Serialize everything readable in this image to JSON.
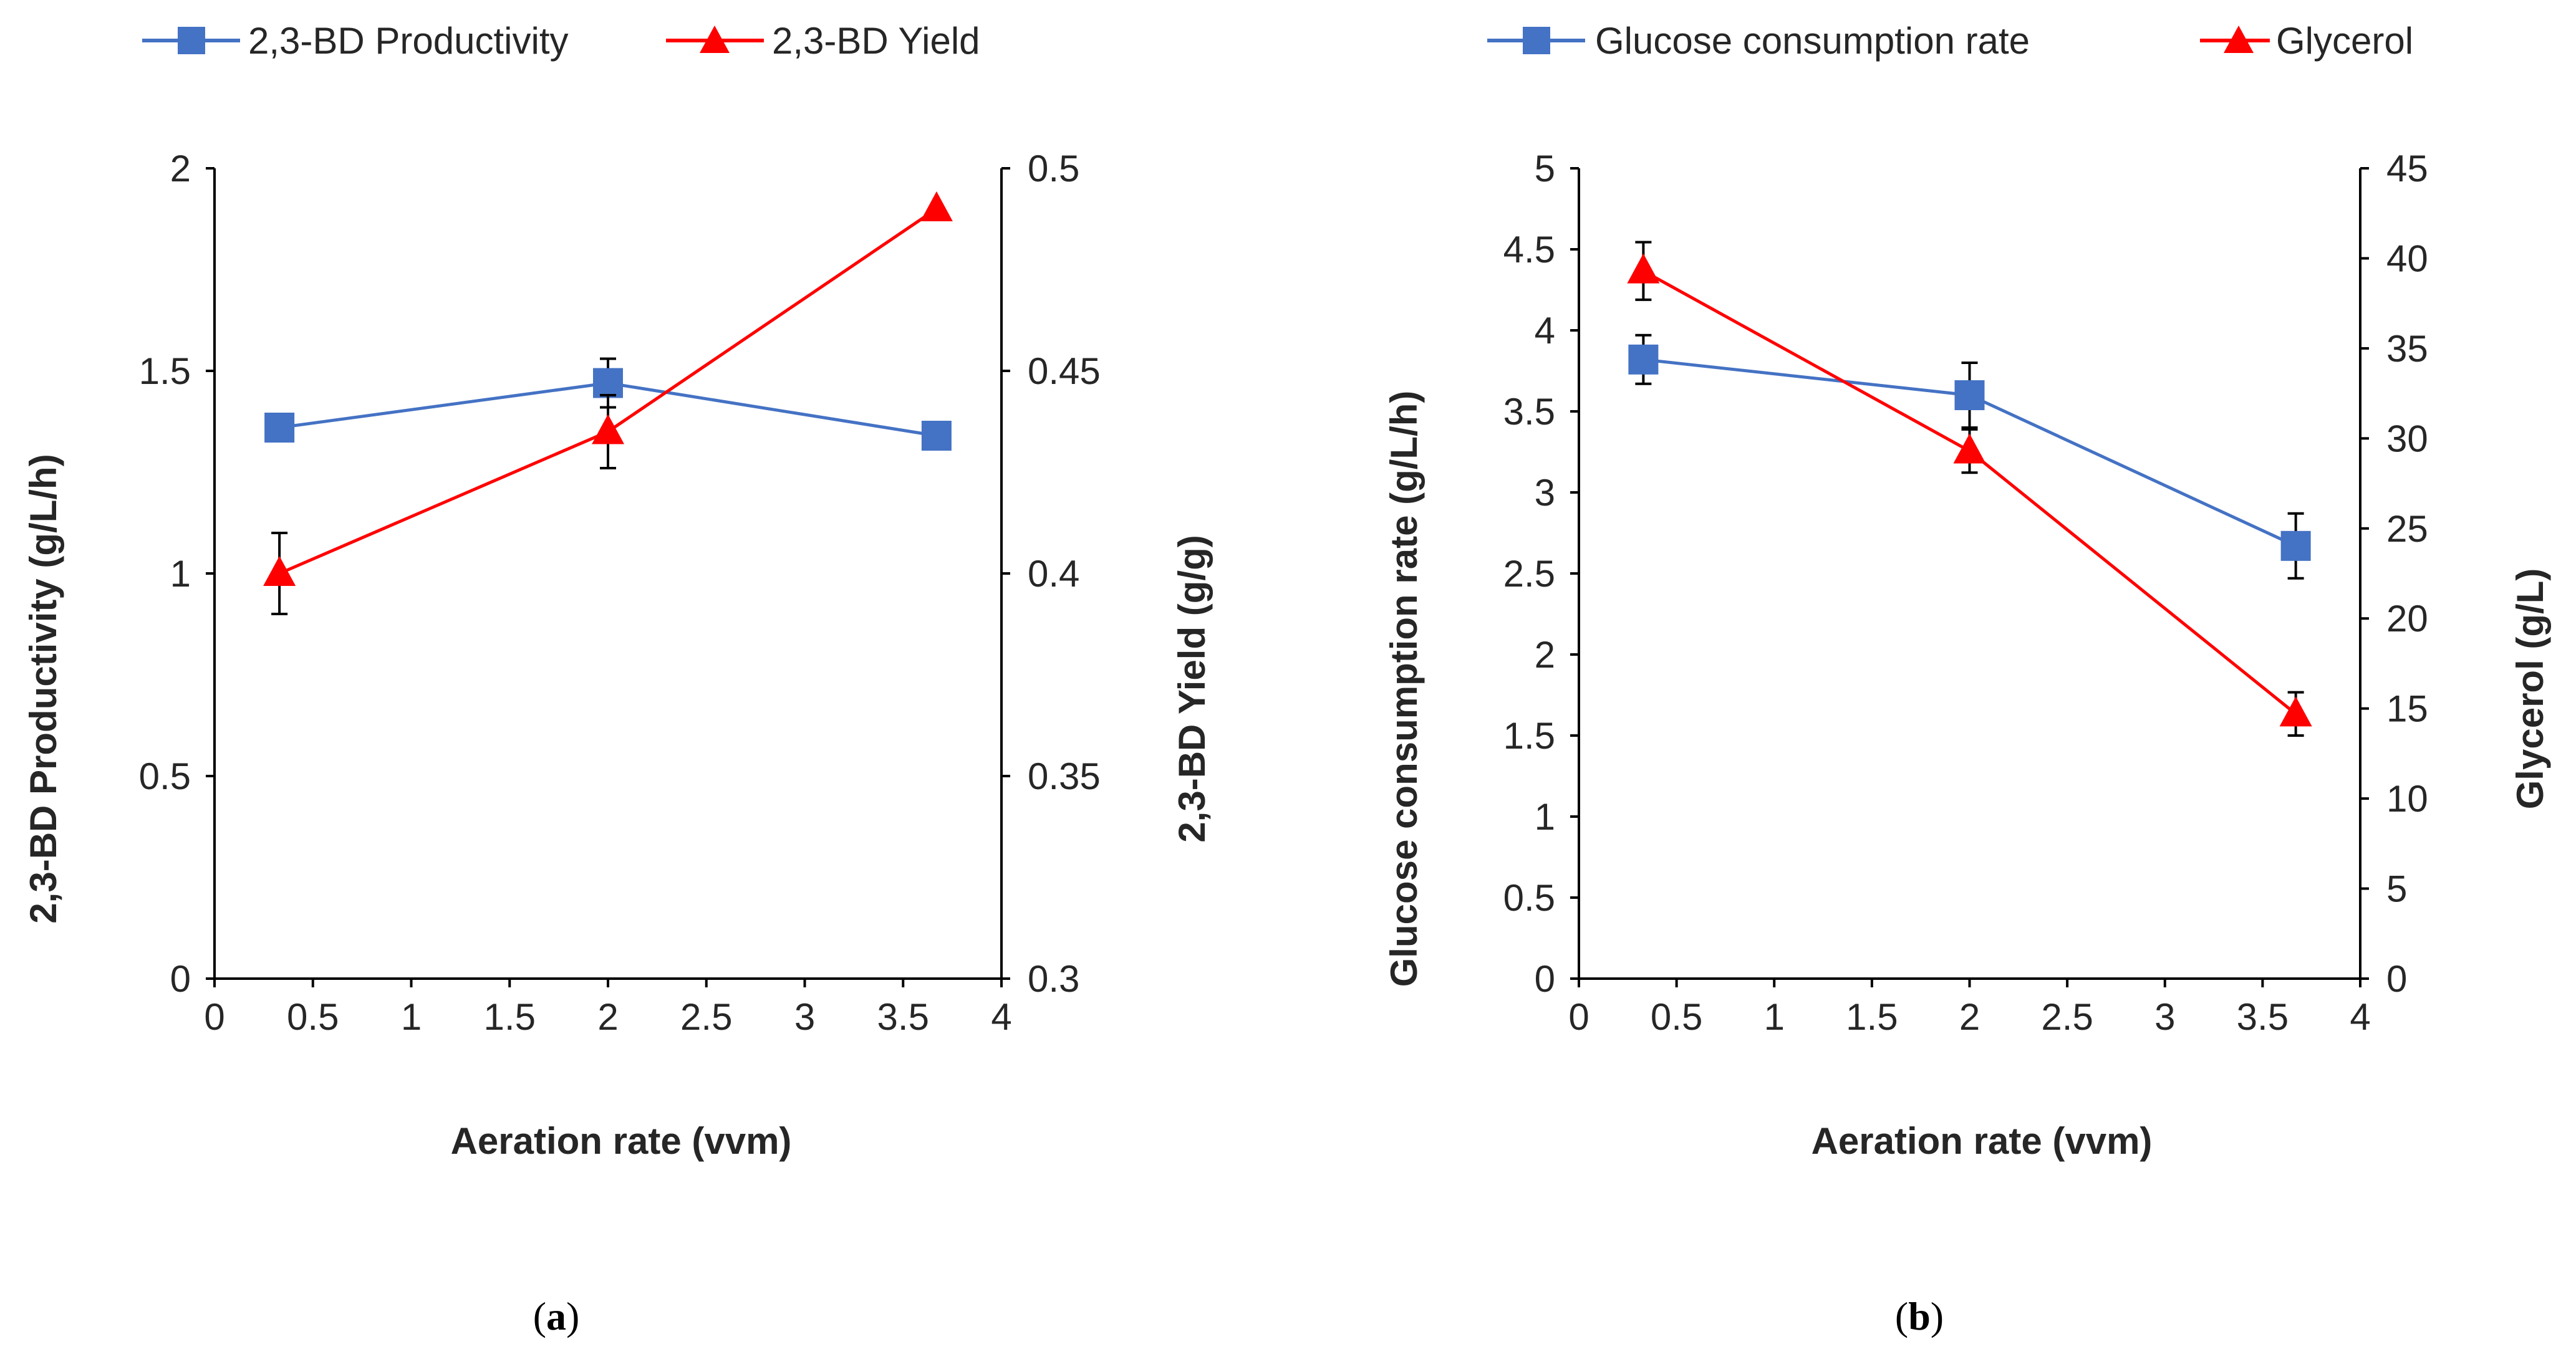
{
  "chart_data": [
    {
      "type": "line",
      "panel_label": "a",
      "xlabel": "Aeration rate (vvm)",
      "ylabel": "2,3-BD Productivity (g/L/h)",
      "y2label": "2,3-BD Yield (g/g)",
      "xlim": [
        0,
        4
      ],
      "ylim": [
        0,
        2
      ],
      "y2lim": [
        0.3,
        0.5
      ],
      "xticks": [
        "0",
        "0.5",
        "1",
        "1.5",
        "2",
        "2.5",
        "3",
        "3.5",
        "4"
      ],
      "yticks": [
        "0",
        "0.5",
        "1",
        "1.5",
        "2"
      ],
      "y2ticks": [
        "0.3",
        "0.35",
        "0.4",
        "0.45",
        "0.5"
      ],
      "series": [
        {
          "name": "2,3-BD Productivity",
          "axis": "left",
          "color": "#4472C4",
          "marker": "square",
          "x": [
            0.33,
            2.0,
            3.67
          ],
          "y": [
            1.36,
            1.47,
            1.34
          ],
          "err": [
            0,
            0.06,
            0
          ]
        },
        {
          "name": "2,3-BD Yield",
          "axis": "right",
          "color": "#FF0000",
          "marker": "triangle",
          "x": [
            0.33,
            2.0,
            3.67
          ],
          "y": [
            0.4,
            0.435,
            0.49
          ],
          "err": [
            0.01,
            0.009,
            0
          ]
        }
      ]
    },
    {
      "type": "line",
      "panel_label": "b",
      "xlabel": "Aeration rate (vvm)",
      "ylabel": "Glucose consumption rate (g/L/h)",
      "y2label": "Glycerol (g/L)",
      "xlim": [
        0,
        4
      ],
      "ylim": [
        0,
        5
      ],
      "y2lim": [
        0,
        45
      ],
      "xticks": [
        "0",
        "0.5",
        "1",
        "1.5",
        "2",
        "2.5",
        "3",
        "3.5",
        "4"
      ],
      "yticks": [
        "0",
        "0.5",
        "1",
        "1.5",
        "2",
        "2.5",
        "3",
        "3.5",
        "4",
        "4.5",
        "5"
      ],
      "y2ticks": [
        "0",
        "5",
        "10",
        "15",
        "20",
        "25",
        "30",
        "35",
        "40",
        "45"
      ],
      "series": [
        {
          "name": "Glucose consumption rate",
          "axis": "left",
          "color": "#4472C4",
          "marker": "square",
          "x": [
            0.33,
            2.0,
            3.67
          ],
          "y": [
            3.82,
            3.6,
            2.67
          ],
          "err": [
            0.15,
            0.2,
            0.2
          ]
        },
        {
          "name": "Glycerol",
          "axis": "right",
          "color": "#FF0000",
          "marker": "triangle",
          "x": [
            0.33,
            2.0,
            3.67
          ],
          "y": [
            39.3,
            29.3,
            14.7
          ],
          "err": [
            1.6,
            1.2,
            1.2
          ]
        }
      ]
    }
  ]
}
